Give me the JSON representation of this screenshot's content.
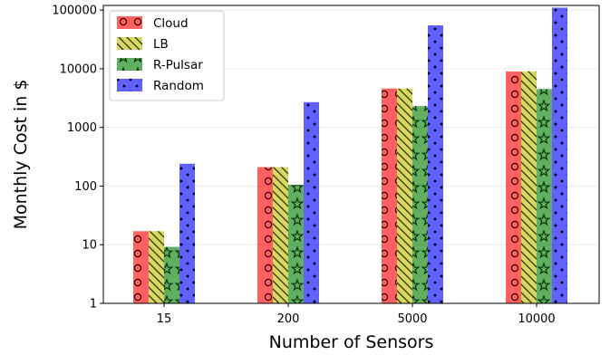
{
  "chart_data": {
    "type": "bar",
    "xlabel": "Number of Sensors",
    "ylabel": "Monthly Cost in $",
    "yscale": "log",
    "ylim": [
      1,
      120000
    ],
    "yticks": [
      "1",
      "10",
      "100",
      "1000",
      "10000",
      "100000"
    ],
    "categories": [
      "15",
      "200",
      "5000",
      "10000"
    ],
    "legend_position": "top-left",
    "series": [
      {
        "name": "Cloud",
        "color": "#ff0000",
        "hatch": "circles",
        "values": [
          17,
          210,
          4600,
          9000
        ]
      },
      {
        "name": "LB",
        "color": "#bfbf00",
        "hatch": "diagonal",
        "values": [
          17,
          210,
          4600,
          9000
        ]
      },
      {
        "name": "R-Pulsar",
        "color": "#008000",
        "hatch": "stars",
        "values": [
          9.2,
          105,
          2300,
          4500
        ]
      },
      {
        "name": "Random",
        "color": "#0000ff",
        "hatch": "dots",
        "values": [
          240,
          2700,
          55000,
          110000
        ]
      }
    ]
  }
}
